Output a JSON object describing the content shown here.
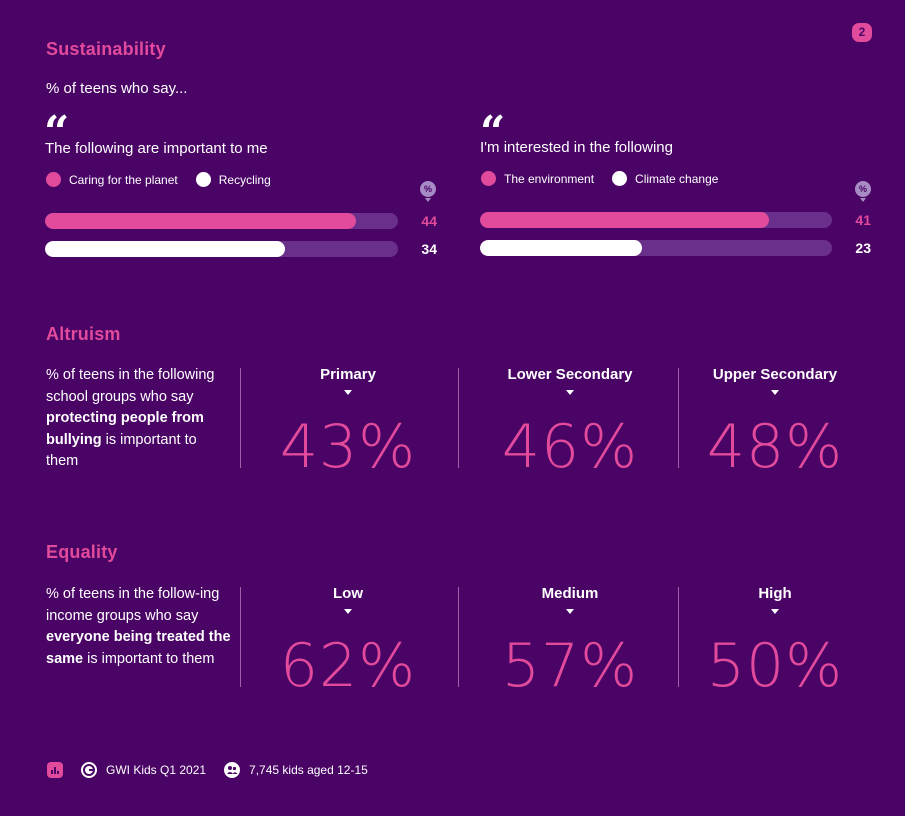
{
  "page_number": "2",
  "sustainability": {
    "title": "Sustainability",
    "subtitle": "% of teens who say...",
    "quote_mark": "“",
    "pct_pin": "%"
  },
  "altruism": {
    "title": "Altruism",
    "desc_1": "% of teens in the following school groups who say ",
    "desc_bold": "protecting people from bullying",
    "desc_2": " is important to them"
  },
  "equality": {
    "title": "Equality",
    "desc_1": "% of teens in the follow-ing income groups who say ",
    "desc_bold": "everyone being treated the same",
    "desc_2": " is important to them"
  },
  "footer": {
    "source": "GWI Kids Q1 2021",
    "sample": "7,745 kids aged 12-15"
  },
  "colors": {
    "pink": "#e24a9c",
    "white": "#ffffff",
    "background": "#4a0466",
    "track": "#6a2f8a"
  },
  "icons": [
    "quote-icon",
    "percent-pin-icon",
    "chart-icon",
    "gwi-logo-icon",
    "people-icon"
  ],
  "chart_data": [
    {
      "type": "bar",
      "title": "The following are important to me",
      "series": [
        {
          "name": "Caring for the planet",
          "value": 44,
          "color": "#e24a9c"
        },
        {
          "name": "Recycling",
          "value": 34,
          "color": "#ffffff"
        }
      ],
      "ylim": [
        0,
        44
      ]
    },
    {
      "type": "bar",
      "title": "I'm interested in the following",
      "series": [
        {
          "name": "The environment",
          "value": 41,
          "color": "#e24a9c"
        },
        {
          "name": "Climate change",
          "value": 23,
          "color": "#ffffff"
        }
      ],
      "ylim": [
        0,
        41
      ]
    },
    {
      "type": "table",
      "title": "Altruism",
      "categories": [
        "Primary",
        "Lower Secondary",
        "Upper Secondary"
      ],
      "values": [
        43,
        46,
        48
      ],
      "unit": "%"
    },
    {
      "type": "table",
      "title": "Equality",
      "categories": [
        "Low",
        "Medium",
        "High"
      ],
      "values": [
        62,
        57,
        50
      ],
      "unit": "%"
    }
  ]
}
